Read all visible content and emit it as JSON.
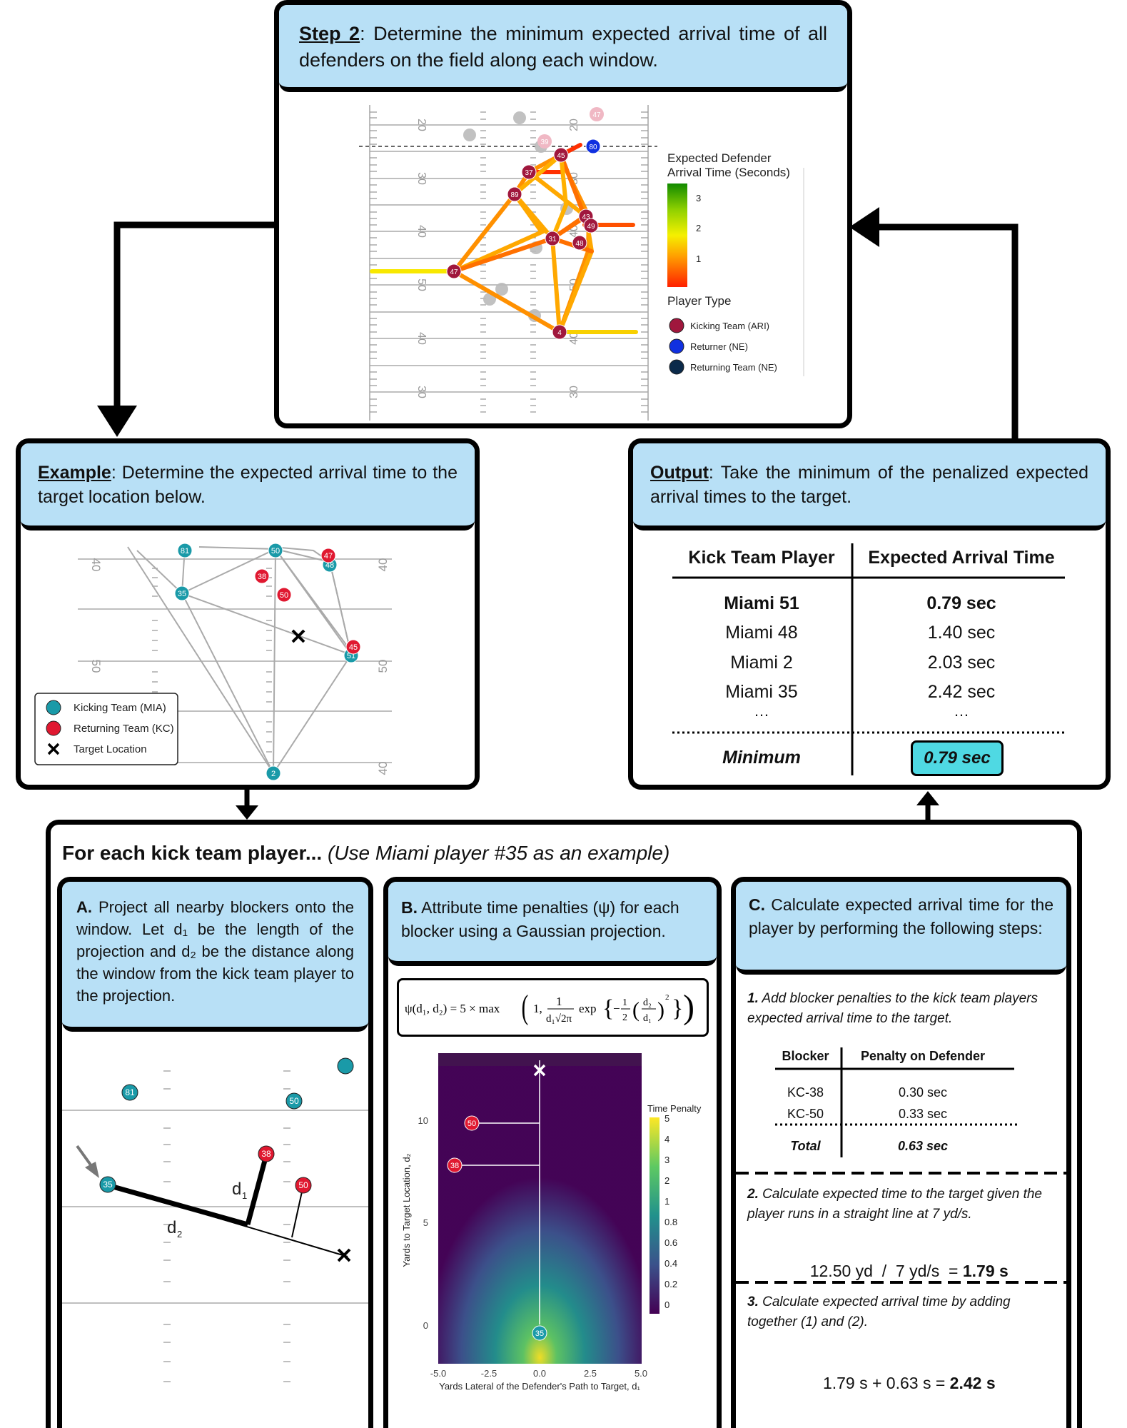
{
  "step2": {
    "title_bold": "Step 2",
    "title_text": ": Determine the minimum expected arrival time of all defenders on the field along each window.",
    "legend_title_1": "Expected Defender",
    "legend_title_2": "Arrival Time (Seconds)",
    "legend_ticks": [
      "3",
      "2",
      "1"
    ],
    "player_type_title": "Player Type",
    "player_types": [
      "Kicking Team (ARI)",
      "Returner (NE)",
      "Returning Team (NE)"
    ],
    "colors": {
      "kicking": "#a0173d",
      "returner": "#1030e0",
      "returning": "#0b2a4a"
    },
    "yard_labels": [
      "20",
      "30",
      "40",
      "50",
      "40",
      "30"
    ],
    "player_numbers": [
      "45",
      "37",
      "89",
      "43",
      "49",
      "31",
      "48",
      "47",
      "4",
      "80",
      "39",
      "47"
    ]
  },
  "example": {
    "title_bold": "Example",
    "title_text": ": Determine the expected arrival time to the target location below.",
    "legend": [
      "Kicking Team (MIA)",
      "Returning Team (KC)",
      "Target Location"
    ],
    "yard_labels": [
      "40",
      "50",
      "40"
    ],
    "player_numbers": [
      "81",
      "50",
      "35",
      "51",
      "2",
      "48",
      "47",
      "38",
      "50",
      "45"
    ],
    "colors": {
      "kicking": "#1a9aa8",
      "returning": "#e01830"
    }
  },
  "output": {
    "title_bold": "Output",
    "title_text": ": Take the minimum of the penalized expected arrival times to the target.",
    "col1": "Kick Team Player",
    "col2": "Expected Arrival Time",
    "rows": [
      {
        "player": "Miami 51",
        "time": "0.79 sec"
      },
      {
        "player": "Miami 48",
        "time": "1.40 sec"
      },
      {
        "player": "Miami 2",
        "time": "2.03 sec"
      },
      {
        "player": "Miami 35",
        "time": "2.42 sec"
      }
    ],
    "ellipsis": "…",
    "min_label": "Minimum",
    "min_value": "0.79 sec"
  },
  "main": {
    "title_bold": "For each kick team player...",
    "title_italic": " (Use Miami player #35 as an example)"
  },
  "panelA": {
    "title_bold": "A.",
    "title_text": " Project all nearby blockers onto the window. Let d₁ be the length of the projection and d₂ be the distance along the window from the kick team player to the projection.",
    "d1": "d",
    "d1_sub": "1",
    "d2": "d",
    "d2_sub": "2",
    "player_numbers": [
      "81",
      "50",
      "38",
      "35",
      "50"
    ]
  },
  "panelB": {
    "title_bold": "B.",
    "title_text": " Attribute time penalties (ψ) for each blocker using  a Gaussian projection.",
    "formula_left": "ψ(d₁, d₂) = 5 × max",
    "legend_title": "Time Penalty",
    "legend_ticks": [
      "5",
      "4",
      "3",
      "2",
      "1",
      "0.8",
      "0.6",
      "0.4",
      "0.2",
      "0"
    ],
    "y_label": "Yards to Target Location, d₂",
    "x_label": "Yards Lateral of the Defender's Path to Target, d₁",
    "x_ticks": [
      "-5.0",
      "-2.5",
      "0.0",
      "2.5",
      "5.0"
    ],
    "y_ticks": [
      "10",
      "5",
      "0"
    ],
    "player_numbers": [
      "50",
      "38",
      "35"
    ]
  },
  "panelC": {
    "title_bold": "C.",
    "title_text": " Calculate expected arrival time for the player by performing the following steps:",
    "step1_bold": "1.",
    "step1_text": " Add blocker penalties to the kick team players expected arrival time to the target.",
    "table_head": [
      "Blocker",
      "Penalty on Defender"
    ],
    "table_rows": [
      {
        "blocker": "KC-38",
        "penalty": "0.30 sec"
      },
      {
        "blocker": "KC-50",
        "penalty": "0.33 sec"
      }
    ],
    "total_label": "Total",
    "total_value": "0.63 sec",
    "step2_bold": "2.",
    "step2_text": " Calculate expected time to the target given the player runs in a straight line at 7 yd/s.",
    "step2_calc": "12.50 yd  /  7 yd/s  = ",
    "step2_result": "1.79 s",
    "step3_bold": "3.",
    "step3_text": " Calculate expected arrival time by adding together (1) and (2).",
    "step3_calc": "1.79 s + 0.63 s = ",
    "step3_result": "2.42 s"
  }
}
